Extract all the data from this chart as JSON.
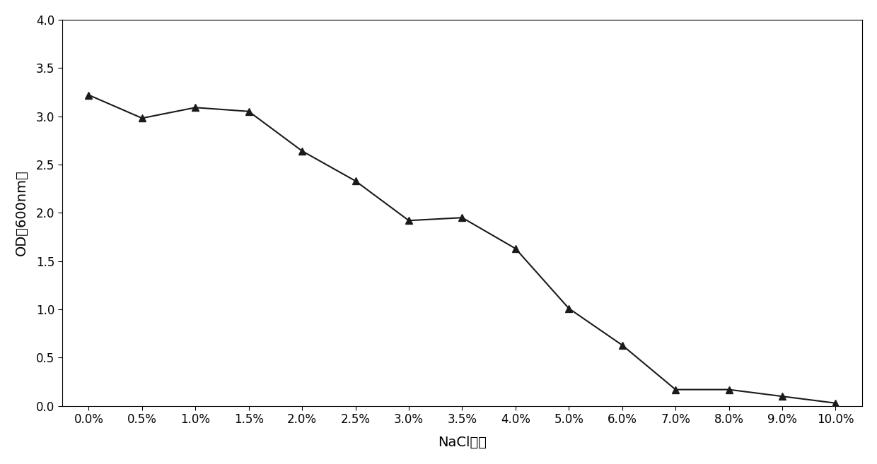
{
  "x_labels": [
    "0.0%",
    "0.5%",
    "1.0%",
    "1.5%",
    "2.0%",
    "2.5%",
    "3.0%",
    "3.5%",
    "4.0%",
    "5.0%",
    "6.0%",
    "7.0%",
    "8.0%",
    "9.0%",
    "10.0%"
  ],
  "y_values": [
    3.22,
    2.98,
    3.09,
    3.05,
    2.64,
    2.33,
    1.92,
    1.95,
    1.63,
    1.01,
    0.63,
    0.17,
    0.17,
    0.1,
    0.03
  ],
  "ylabel": "OD（600nm）",
  "xlabel": "NaCl浓度",
  "ylim": [
    0.0,
    4.0
  ],
  "yticks": [
    0.0,
    0.5,
    1.0,
    1.5,
    2.0,
    2.5,
    3.0,
    3.5,
    4.0
  ],
  "ytick_labels": [
    "0.0",
    "0.5",
    "1.0",
    "1.5",
    "2.0",
    "2.5",
    "3.0",
    "3.5",
    "4.0"
  ],
  "line_color": "#1a1a1a",
  "marker": "^",
  "marker_size": 7,
  "marker_color": "#1a1a1a",
  "line_width": 1.5,
  "background_color": "#ffffff",
  "axis_label_fontsize": 14,
  "tick_fontsize": 12
}
